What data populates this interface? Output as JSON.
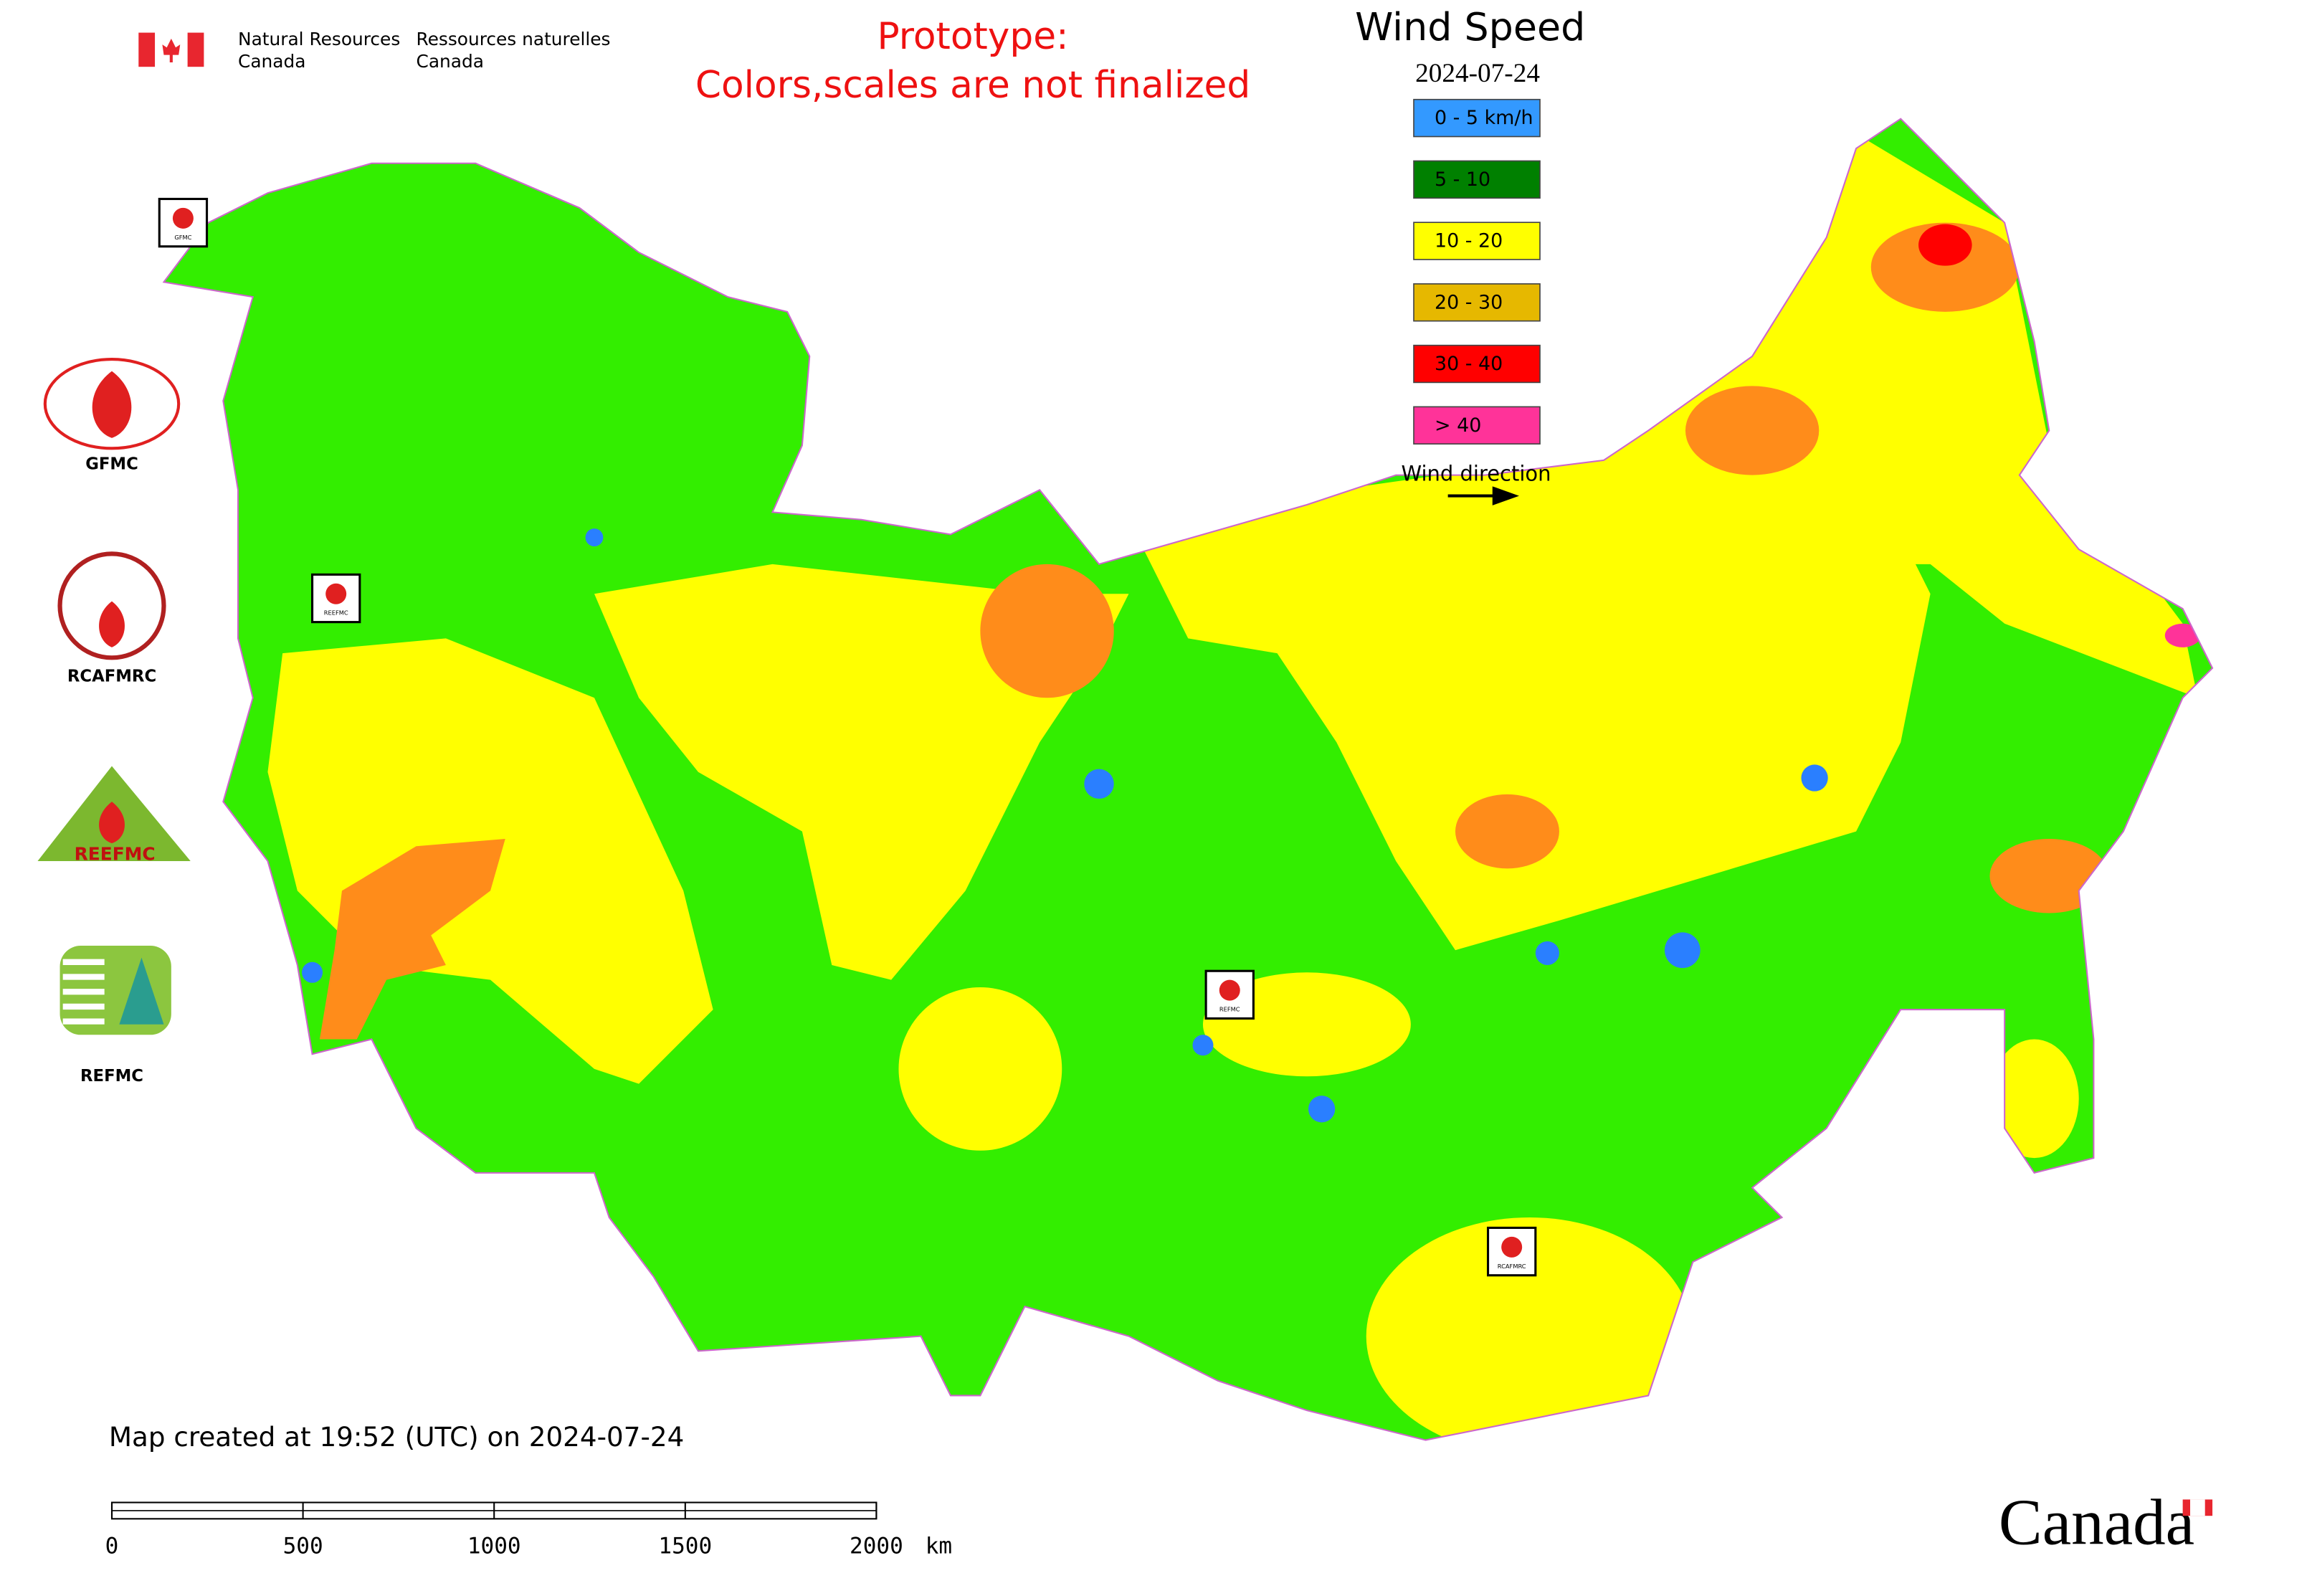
{
  "header": {
    "agency_en_line1": "Natural Resources",
    "agency_en_line2": "Canada",
    "agency_fr_line1": "Ressources naturelles",
    "agency_fr_line2": "Canada",
    "notice_line1": "Prototype:",
    "notice_line2": "Colors,scales are not finalized"
  },
  "legend": {
    "title": "Wind Speed",
    "date": "2024-07-24",
    "classes": [
      {
        "label": "0 - 5 km/h",
        "color": "#3399ff"
      },
      {
        "label": "5 - 10",
        "color": "#008000"
      },
      {
        "label": "10 - 20",
        "color": "#ffff00"
      },
      {
        "label": "20 - 30",
        "color": "#e6b800"
      },
      {
        "label": "30 - 40",
        "color": "#ff0000"
      },
      {
        "label": "> 40",
        "color": "#ff3399"
      }
    ],
    "wind_direction": "Wind direction"
  },
  "logos": {
    "gfmc": "GFMC",
    "rcafmrc": "RCAFMRC",
    "reefmc_emblem": "REEFMC",
    "refmc": "REFMC"
  },
  "map_markers": [
    "GFMC",
    "REEFMC",
    "REFMC",
    "RCAFMRC"
  ],
  "footer": {
    "created": "Map created at 19:52 (UTC) on 2024-07-24",
    "wordmark": "Canada"
  },
  "scale_bar": {
    "ticks": [
      0,
      500,
      1000,
      1500,
      2000
    ],
    "unit": "km"
  }
}
